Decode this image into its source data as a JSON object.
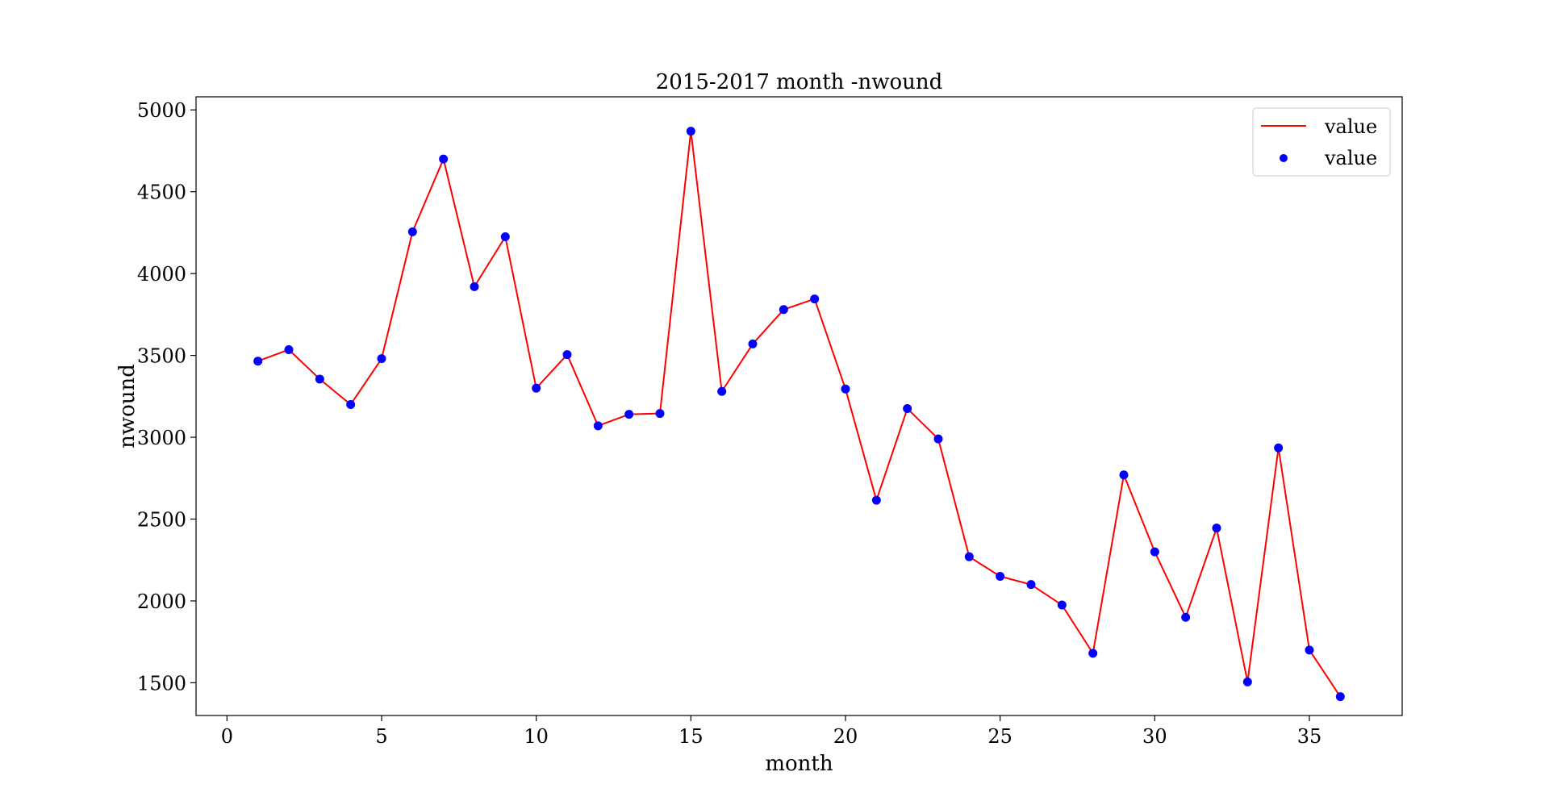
{
  "chart_data": {
    "type": "line",
    "title": "2015-2017 month -nwound",
    "xlabel": "month",
    "ylabel": "nwound",
    "xlim": [
      -1,
      38
    ],
    "ylim": [
      1300,
      5080
    ],
    "xticks": [
      0,
      5,
      10,
      15,
      20,
      25,
      30,
      35
    ],
    "yticks": [
      1500,
      2000,
      2500,
      3000,
      3500,
      4000,
      4500,
      5000
    ],
    "grid": false,
    "legend_position": "top-right",
    "series": [
      {
        "name": "value",
        "kind": "line",
        "color": "#ff0000",
        "x": [
          1,
          2,
          3,
          4,
          5,
          6,
          7,
          8,
          9,
          10,
          11,
          12,
          13,
          14,
          15,
          16,
          17,
          18,
          19,
          20,
          21,
          22,
          23,
          24,
          25,
          26,
          27,
          28,
          29,
          30,
          31,
          32,
          33,
          34,
          35,
          36
        ],
        "y": [
          3465,
          3535,
          3355,
          3200,
          3480,
          4255,
          4700,
          3920,
          4225,
          3300,
          3505,
          3070,
          3140,
          3145,
          4870,
          3280,
          3570,
          3780,
          3845,
          3295,
          2615,
          3175,
          2990,
          2270,
          2150,
          2100,
          1975,
          1680,
          2770,
          2300,
          1900,
          2445,
          1505,
          2935,
          1700,
          1415
        ]
      },
      {
        "name": "value",
        "kind": "scatter",
        "color": "#0000ff",
        "x": [
          1,
          2,
          3,
          4,
          5,
          6,
          7,
          8,
          9,
          10,
          11,
          12,
          13,
          14,
          15,
          16,
          17,
          18,
          19,
          20,
          21,
          22,
          23,
          24,
          25,
          26,
          27,
          28,
          29,
          30,
          31,
          32,
          33,
          34,
          35,
          36
        ],
        "y": [
          3465,
          3535,
          3355,
          3200,
          3480,
          4255,
          4700,
          3920,
          4225,
          3300,
          3505,
          3070,
          3140,
          3145,
          4870,
          3280,
          3570,
          3780,
          3845,
          3295,
          2615,
          3175,
          2990,
          2270,
          2150,
          2100,
          1975,
          1680,
          2770,
          2300,
          1900,
          2445,
          1505,
          2935,
          1700,
          1415
        ]
      }
    ]
  }
}
